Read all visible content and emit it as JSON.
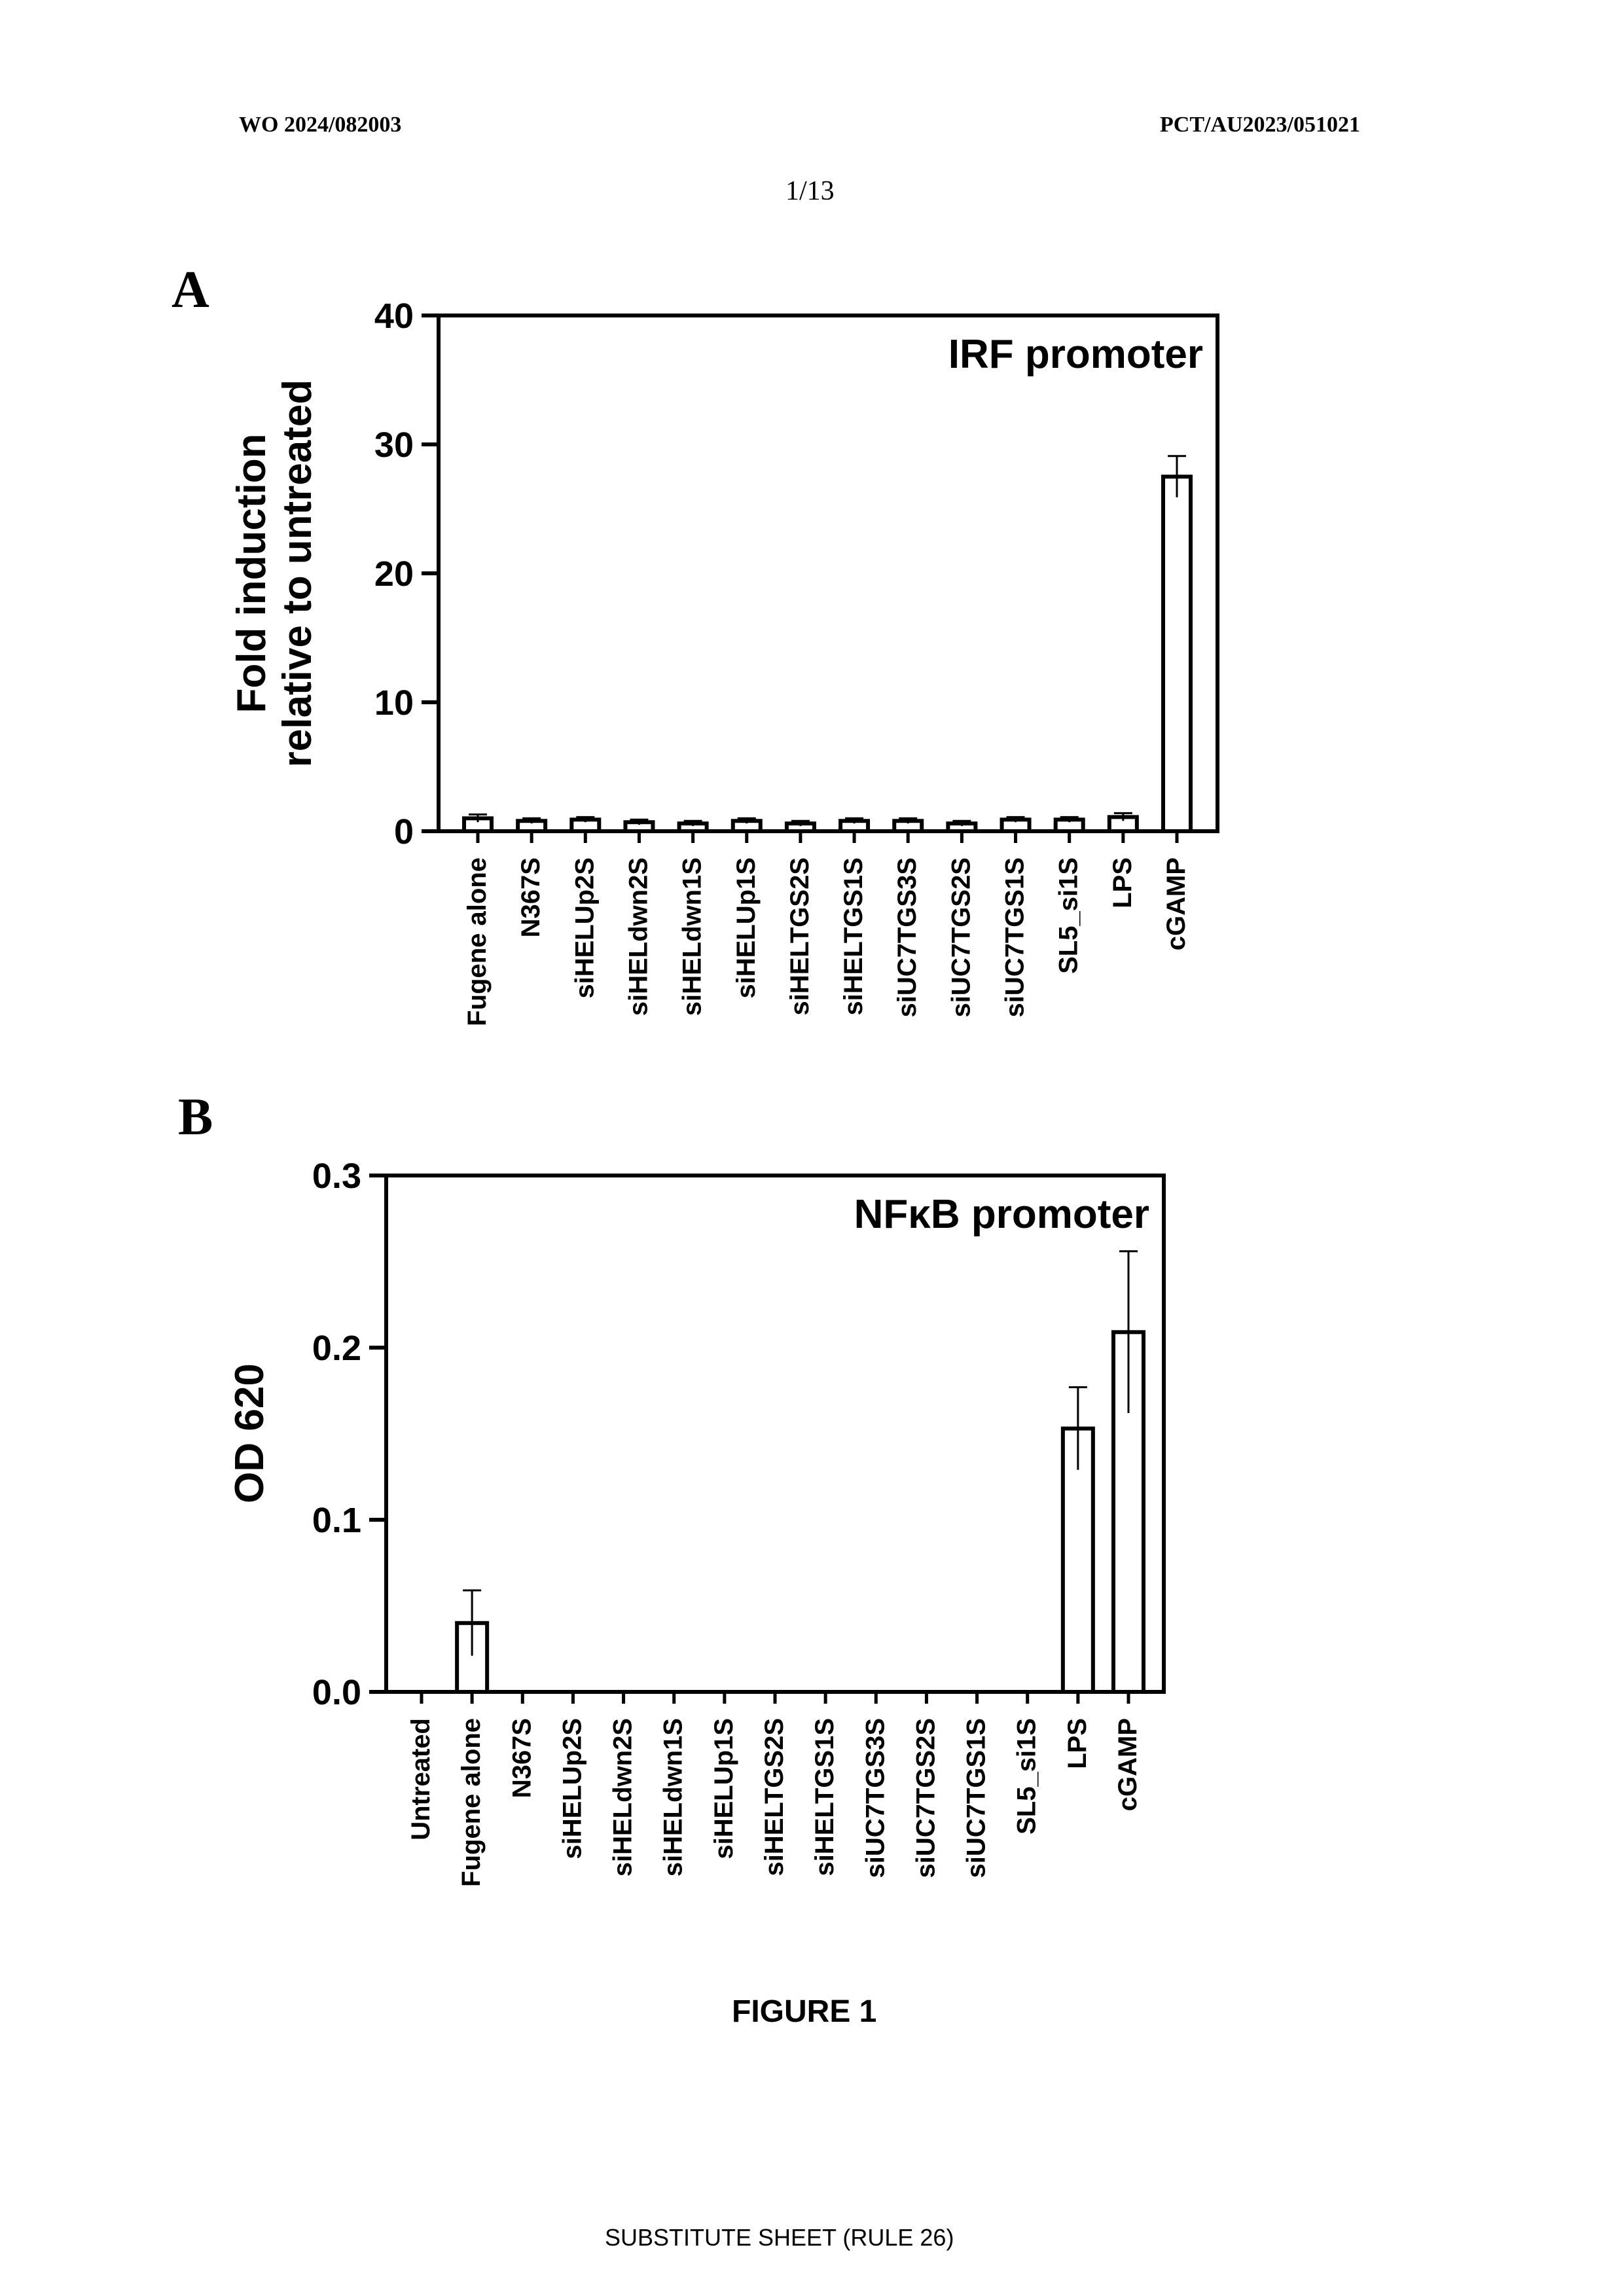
{
  "header": {
    "pub_number": "WO 2024/082003",
    "app_number": "PCT/AU2023/051021",
    "page": "1/13"
  },
  "panels": {
    "a_label": "A",
    "b_label": "B"
  },
  "caption": "FIGURE 1",
  "footer": "SUBSTITUTE SHEET (RULE 26)",
  "colors": {
    "ink": "#000000",
    "paper": "#ffffff"
  },
  "chart_data": [
    {
      "type": "bar",
      "title": "IRF promoter",
      "xlabel": "",
      "ylabel_lines": [
        "Fold induction",
        "relative to untreated"
      ],
      "ylim": [
        0,
        40
      ],
      "yticks": [
        0,
        10,
        20,
        30,
        40
      ],
      "ytick_labels": [
        "0",
        "10",
        "20",
        "30",
        "40"
      ],
      "categories": [
        "Fugene alone",
        "N367S",
        "siHELUp2S",
        "siHELdwn2S",
        "siHELdwn1S",
        "siHELUp1S",
        "siHELTGS2S",
        "siHELTGS1S",
        "siUC7TGS3S",
        "siUC7TGS2S",
        "siUC7TGS1S",
        "SL5_si1S",
        "LPS",
        "cGAMP"
      ],
      "values": [
        1.0,
        0.8,
        0.9,
        0.7,
        0.6,
        0.8,
        0.6,
        0.8,
        0.8,
        0.6,
        0.9,
        0.9,
        1.1,
        27.5
      ],
      "errors": [
        0.3,
        0.2,
        0.2,
        0.2,
        0.2,
        0.2,
        0.2,
        0.2,
        0.2,
        0.2,
        0.2,
        0.2,
        0.3,
        1.6
      ]
    },
    {
      "type": "bar",
      "title": "NFκB promoter",
      "xlabel": "",
      "ylabel_lines": [
        "OD 620"
      ],
      "ylim": [
        0,
        0.3
      ],
      "yticks": [
        0,
        0.1,
        0.2,
        0.3
      ],
      "ytick_labels": [
        "0.0",
        "0.1",
        "0.2",
        "0.3"
      ],
      "categories": [
        "Untreated",
        "Fugene alone",
        "N367S",
        "siHELUp2S",
        "siHELdwn2S",
        "siHELdwn1S",
        "siHELUp1S",
        "siHELTGS2S",
        "siHELTGS1S",
        "siUC7TGS3S",
        "siUC7TGS2S",
        "siUC7TGS1S",
        "SL5_si1S",
        "LPS",
        "cGAMP"
      ],
      "values": [
        0,
        0.04,
        0,
        0,
        0,
        0,
        0,
        0,
        0,
        0,
        0,
        0,
        0,
        0.153,
        0.209
      ],
      "errors": [
        0,
        0.019,
        0,
        0,
        0,
        0,
        0,
        0,
        0,
        0,
        0,
        0,
        0,
        0.024,
        0.047
      ]
    }
  ]
}
